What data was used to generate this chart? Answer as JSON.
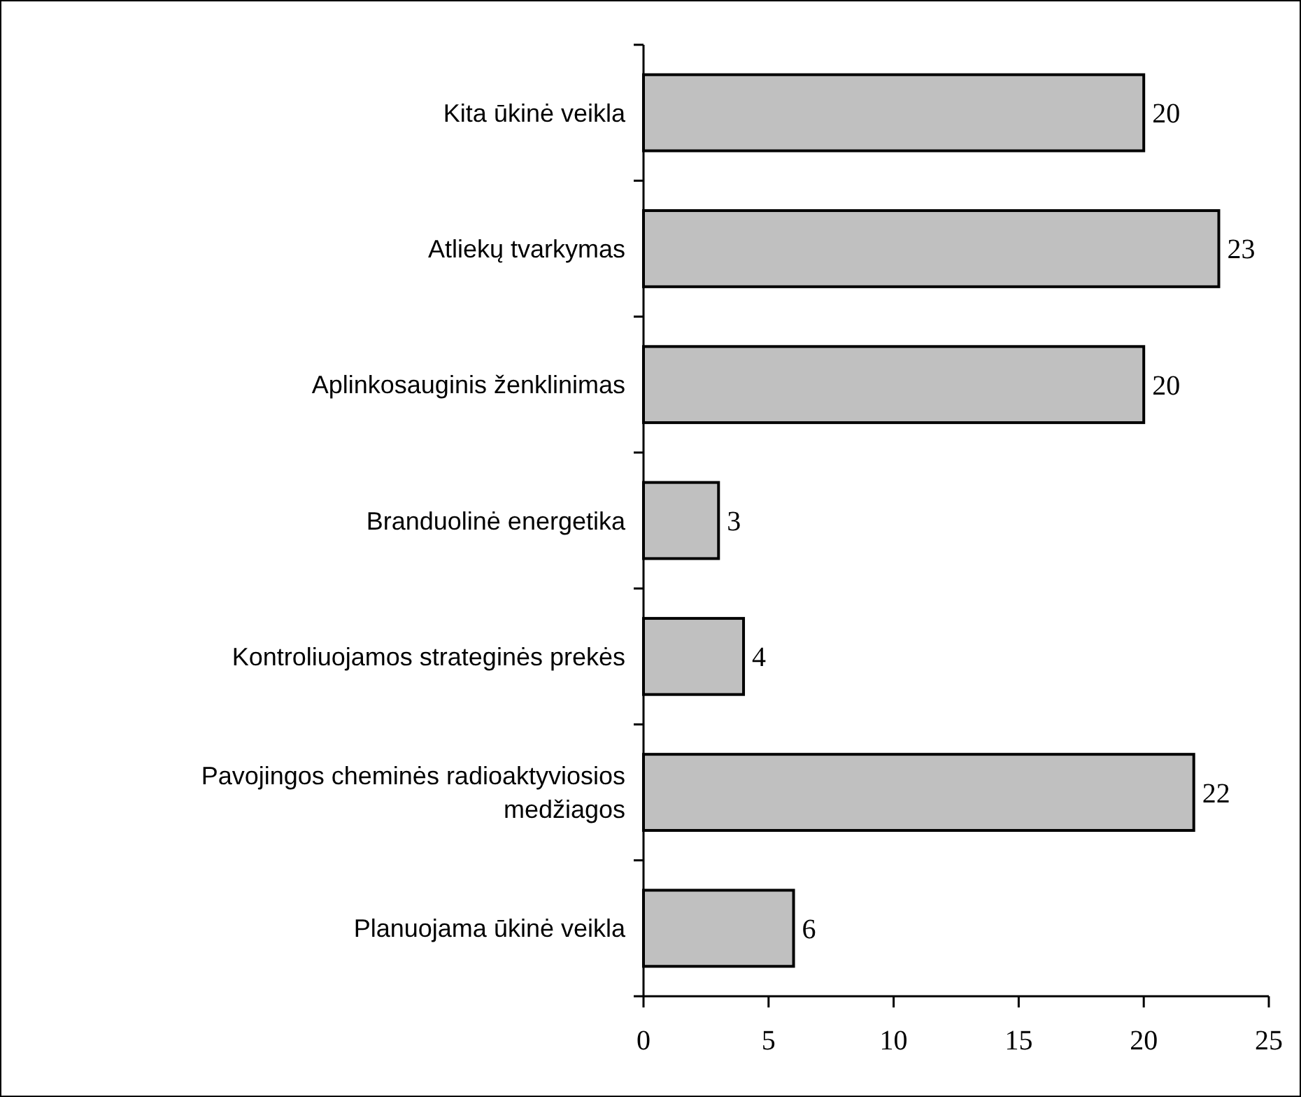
{
  "chart_data": {
    "type": "bar",
    "orientation": "horizontal",
    "categories": [
      "Kita ūkinė veikla",
      "Atliekų tvarkymas",
      "Aplinkosauginis ženklinimas",
      "Branduolinė energetika",
      "Kontroliuojamos strateginės prekės",
      "Pavojingos cheminės radioaktyviosios medžiagos",
      "Planuojama ūkinė veikla"
    ],
    "values": [
      20,
      23,
      20,
      3,
      4,
      22,
      6
    ],
    "color": "#c0c0c0",
    "xlim": [
      0,
      25
    ],
    "xticks": [
      0,
      5,
      10,
      15,
      20,
      25
    ],
    "data_labels": true,
    "grid": false
  }
}
